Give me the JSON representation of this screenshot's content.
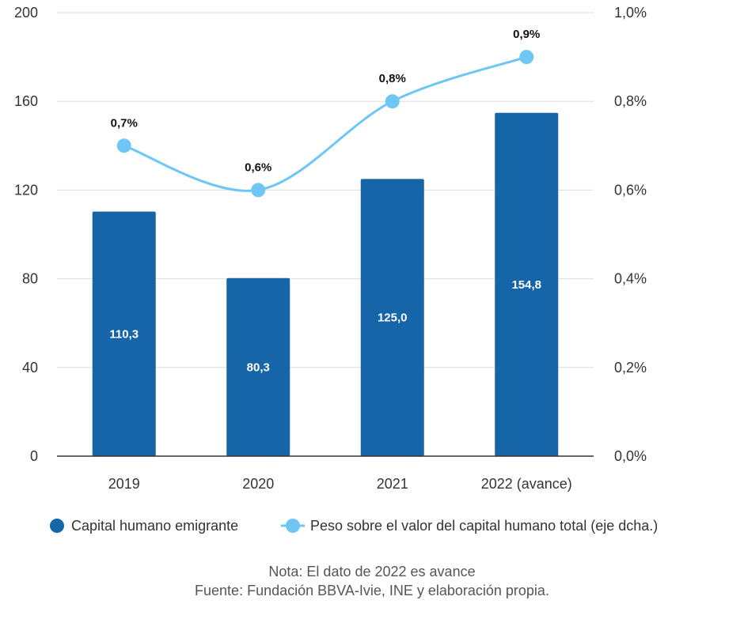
{
  "chart_data": {
    "type": "bar",
    "categories": [
      "2019",
      "2020",
      "2021",
      "2022 (avance)"
    ],
    "series": [
      {
        "name": "Capital humano emigrante",
        "type": "bar",
        "axis": "left",
        "values": [
          110.3,
          80.3,
          125.0,
          154.8
        ],
        "labels": [
          "110,3",
          "80,3",
          "125,0",
          "154,8"
        ],
        "color": "#1565a8"
      },
      {
        "name": "Peso sobre el valor del capital humano total (eje dcha.)",
        "type": "line",
        "axis": "right",
        "values": [
          0.7,
          0.6,
          0.8,
          0.9
        ],
        "labels": [
          "0,7%",
          "0,6%",
          "0,8%",
          "0,9%"
        ],
        "color": "#6ec6f5"
      }
    ],
    "y_left": {
      "ylim": [
        0,
        200
      ],
      "ticks": [
        0,
        40,
        80,
        120,
        160,
        200
      ],
      "tick_labels": [
        "0",
        "40",
        "80",
        "120",
        "160",
        "200"
      ]
    },
    "y_right": {
      "ylim": [
        0,
        1.0
      ],
      "ticks": [
        0,
        0.2,
        0.4,
        0.6,
        0.8,
        1.0
      ],
      "tick_labels": [
        "0,0%",
        "0,2%",
        "0,4%",
        "0,6%",
        "0,8%",
        "1,0%"
      ]
    },
    "grid": true,
    "legend_position": "bottom"
  },
  "notes": {
    "note": "Nota: El dato de 2022 es avance",
    "source": "Fuente: Fundación BBVA-Ivie, INE y elaboración propia."
  }
}
